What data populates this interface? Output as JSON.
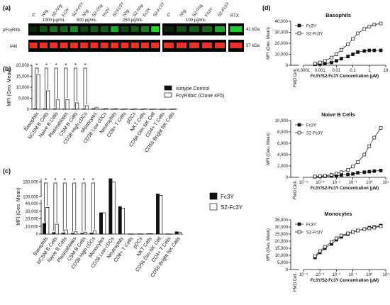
{
  "panels": {
    "a": {
      "label": "(a)",
      "row_labels": [
        "pFcγRIIb",
        "tAkt"
      ],
      "kda_labels": [
        "41 kDa",
        "57 kDa"
      ],
      "lanes": [
        "C",
        "IVIg",
        "S2-IVIg",
        "Fc3Y",
        "S2-Fc3Y",
        "IVIg",
        "S2-IVIg",
        "Fc3Y",
        "S2-Fc3Y",
        "IVIg",
        "S2-IVIg",
        "Fc3Y",
        "S2-Fc3Y",
        "C",
        "IVIg",
        "S2-IVIg",
        "Fc3Y",
        "S2-Fc3Y",
        "RTX"
      ],
      "concentrations": [
        "1000 μg/mL",
        "500 μg/mL",
        "250 μg/mL",
        "100 μg/mL"
      ],
      "colors": {
        "green": "#2bdc38",
        "red": "#ff3a2e",
        "bg": "#050505"
      }
    },
    "b": {
      "label": "(b)"
    },
    "c": {
      "label": "(c)"
    },
    "d": {
      "label": "(d)"
    }
  },
  "chart_data": [
    {
      "id": "b",
      "type": "bar",
      "title": "",
      "xlabel": "",
      "ylabel": "MFI (Geo. Mean)",
      "ylim": [
        0,
        20000
      ],
      "yticks": [
        0,
        5000,
        10000,
        15000,
        20000
      ],
      "categories": [
        "Basophils",
        "NCSM B Cells",
        "Naive B Cells",
        "Plasmablasts",
        "CSM B Cells",
        "CD38 High cDCs",
        "Monocytes",
        "CD38 Low cDCs",
        "Neutrophils",
        "CD8+ T Cells",
        "pDCs",
        "NKT Cells",
        "CD56 Dim NK Cell",
        "CD4+ T Cells",
        "CD56 Bright NK Cells"
      ],
      "series": [
        {
          "name": "Isotype Control",
          "color": "#111111",
          "values": [
            300,
            250,
            200,
            150,
            150,
            200,
            250,
            100,
            100,
            50,
            50,
            50,
            50,
            50,
            50
          ]
        },
        {
          "name": "FcγRIIb/c (Clone 4F5)",
          "color": "#ffffff",
          "values": [
            15800,
            8400,
            4300,
            4400,
            2900,
            1600,
            700,
            350,
            250,
            150,
            150,
            150,
            100,
            100,
            100
          ]
        }
      ],
      "significance": [
        0,
        1,
        2,
        3,
        4,
        5
      ],
      "significance_mark": "*",
      "legend_position": "right"
    },
    {
      "id": "c",
      "type": "bar",
      "title": "",
      "xlabel": "",
      "ylabel": "MFI (Geo. Mean)",
      "ylim": [
        0,
        160000
      ],
      "axis_break": [
        45000,
        100000
      ],
      "yticks": [
        0,
        10000,
        20000,
        30000,
        40000,
        100000,
        150000
      ],
      "categories": [
        "Basophils",
        "NCSM B Cells",
        "Naive B Cells",
        "Plasmablasts",
        "CSM B Cells",
        "CD38 High cDCs",
        "Monocytes",
        "CD38 Low cDCs",
        "Neutrophils",
        "CD8+ T Cells",
        "pDCs",
        "NKT Cells",
        "CD56 Dim NK Cell",
        "CD4+ T Cells",
        "CD56 Bright NK Cells"
      ],
      "series": [
        {
          "name": "Fc3Y",
          "color": "#111111",
          "values": [
            14000,
            2000,
            1500,
            1000,
            1000,
            1500,
            28000,
            160000,
            36000,
            300,
            300,
            500,
            110000,
            300,
            3000
          ]
        },
        {
          "name": "S2-Fc3Y",
          "color": "#ffffff",
          "values": [
            35000,
            13000,
            5500,
            3000,
            2500,
            4000,
            28000,
            150000,
            34000,
            200,
            200,
            500,
            105000,
            200,
            2500
          ]
        }
      ],
      "significance": [
        0,
        1,
        2,
        3,
        4,
        5
      ],
      "significance_mark": "*",
      "legend_position": "right"
    },
    {
      "id": "d1",
      "type": "line",
      "title": "Basophils",
      "xlabel": "Fc3Y/S2-Fc3Y Concentration (μM)",
      "ylabel": "MFI (Geo. Mean)",
      "x_scale": "log",
      "xlim": [
        0.0001,
        10
      ],
      "xticks": [
        "0.0001",
        "0.001",
        "0.01",
        "0.1",
        "1",
        "10"
      ],
      "ylim": [
        0,
        40000
      ],
      "yticks": [
        0,
        10000,
        20000,
        30000,
        40000
      ],
      "fmo_label": "FMO Cntl.",
      "legend_position": "top-left",
      "series": [
        {
          "name": "Fc3Y",
          "marker": "square-filled",
          "x": [
            0.0005,
            0.001,
            0.002,
            0.005,
            0.01,
            0.02,
            0.05,
            0.1,
            0.2,
            0.5,
            1,
            2,
            5
          ],
          "y": [
            800,
            1000,
            1500,
            2500,
            4000,
            6000,
            8000,
            10000,
            12000,
            13000,
            13500,
            13500,
            13500
          ]
        },
        {
          "name": "S2-Fc3Y",
          "marker": "square-open",
          "x": [
            0.0005,
            0.001,
            0.002,
            0.005,
            0.01,
            0.02,
            0.05,
            0.1,
            0.2,
            0.5,
            1,
            2,
            5
          ],
          "y": [
            1500,
            2500,
            4000,
            7000,
            10000,
            14000,
            19000,
            24000,
            29000,
            33000,
            35000,
            37000,
            38000
          ]
        }
      ]
    },
    {
      "id": "d2",
      "type": "line",
      "title": "Naive B Cells",
      "xlabel": "Fc3Y/S2-Fc3Y Concentration (μM)",
      "ylabel": "MFI (Geo. Mean)",
      "x_scale": "log",
      "xlim": [
        0.0001,
        10
      ],
      "xticks": [
        "10⁻⁴",
        "10⁻³",
        "10⁻²",
        "10⁻¹",
        "10⁰",
        "10¹"
      ],
      "ylim": [
        0,
        10000
      ],
      "yticks": [
        0,
        2000,
        4000,
        6000,
        8000,
        10000
      ],
      "fmo_label": "FMO Cntl.",
      "legend_position": "top-left",
      "series": [
        {
          "name": "Fc3Y",
          "marker": "square-filled",
          "x": [
            0.0005,
            0.001,
            0.002,
            0.005,
            0.01,
            0.02,
            0.05,
            0.1,
            0.2,
            0.5,
            1,
            2,
            5
          ],
          "y": [
            100,
            150,
            200,
            250,
            300,
            400,
            500,
            600,
            800,
            900,
            1000,
            1100,
            1200
          ]
        },
        {
          "name": "S2-Fc3Y",
          "marker": "square-open",
          "x": [
            0.0005,
            0.001,
            0.002,
            0.005,
            0.01,
            0.02,
            0.05,
            0.1,
            0.2,
            0.5,
            1,
            2,
            5
          ],
          "y": [
            150,
            200,
            300,
            450,
            650,
            900,
            1300,
            1900,
            2700,
            4000,
            5500,
            7000,
            8700
          ]
        }
      ]
    },
    {
      "id": "d3",
      "type": "line",
      "title": "Monocytes",
      "xlabel": "Fc3Y/S2-Fc3Y Concentration (μM)",
      "ylabel": "MFI (Geo. Mean)",
      "x_scale": "log",
      "xlim": [
        0.0001,
        10
      ],
      "xticks": [
        "10⁻⁴",
        "10⁻³",
        "10⁻²",
        "10⁻¹",
        "10⁰",
        "10¹"
      ],
      "ylim": [
        0,
        35000
      ],
      "yticks": [
        0,
        5000,
        10000,
        15000,
        20000,
        25000,
        30000,
        35000
      ],
      "fmo_label": "FMO Cntl.",
      "legend_position": "top-left",
      "series": [
        {
          "name": "Fc3Y",
          "marker": "square-filled",
          "x": [
            0.0005,
            0.001,
            0.002,
            0.005,
            0.01,
            0.02,
            0.05,
            0.1,
            0.2,
            0.5,
            1,
            2,
            5
          ],
          "y": [
            8500,
            12000,
            15000,
            18000,
            21000,
            23000,
            25000,
            26500,
            27500,
            28500,
            29500,
            30000,
            31000
          ]
        },
        {
          "name": "S2-Fc3Y",
          "marker": "square-open",
          "x": [
            0.0005,
            0.001,
            0.002,
            0.005,
            0.01,
            0.02,
            0.05,
            0.1,
            0.2,
            0.5,
            1,
            2,
            5
          ],
          "y": [
            9500,
            13000,
            16000,
            19500,
            22000,
            24000,
            25500,
            26500,
            27500,
            28500,
            29000,
            29500,
            30500
          ]
        }
      ]
    }
  ]
}
